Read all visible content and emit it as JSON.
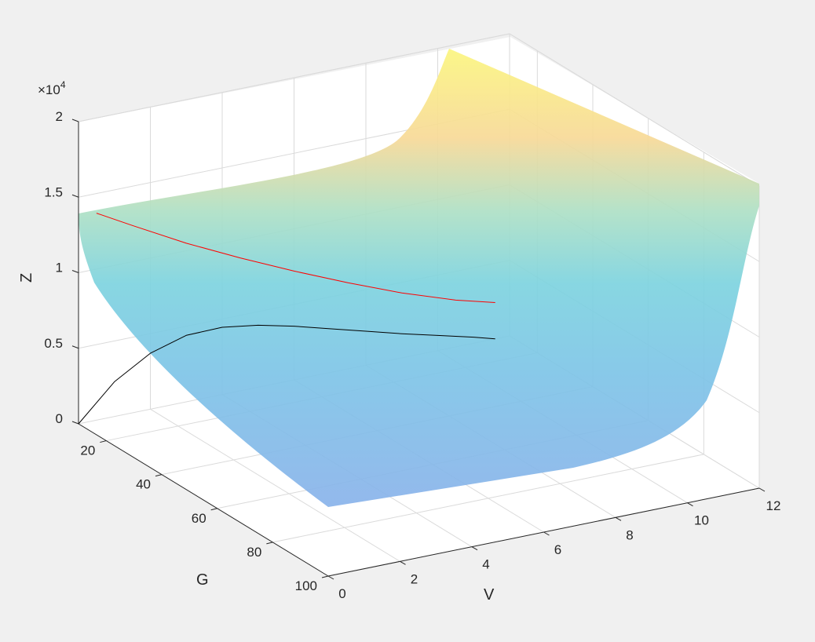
{
  "chart_data": {
    "type": "surface",
    "title": "",
    "xlabel": "V",
    "ylabel": "G",
    "zlabel": "Z",
    "z_exponent_label": "×10",
    "z_exponent_power": "4",
    "xlim": [
      0,
      12
    ],
    "ylim": [
      10,
      100
    ],
    "zlim": [
      0,
      20000
    ],
    "x_ticks": [
      {
        "value": 0,
        "label": "0"
      },
      {
        "value": 2,
        "label": "2"
      },
      {
        "value": 4,
        "label": "4"
      },
      {
        "value": 6,
        "label": "6"
      },
      {
        "value": 8,
        "label": "8"
      },
      {
        "value": 10,
        "label": "10"
      },
      {
        "value": 12,
        "label": "12"
      }
    ],
    "y_ticks": [
      {
        "value": 20,
        "label": "20"
      },
      {
        "value": 40,
        "label": "40"
      },
      {
        "value": 60,
        "label": "60"
      },
      {
        "value": 80,
        "label": "80"
      },
      {
        "value": 100,
        "label": "100"
      }
    ],
    "z_ticks": [
      {
        "value": 0,
        "label": "0"
      },
      {
        "value": 5000,
        "label": "0.5"
      },
      {
        "value": 10000,
        "label": "1"
      },
      {
        "value": 15000,
        "label": "1.5"
      },
      {
        "value": 20000,
        "label": "2"
      }
    ],
    "grid": true,
    "surface": {
      "v_range": [
        0,
        12
      ],
      "g_range": [
        10,
        100
      ],
      "colormap": "parula-light",
      "z_samples": [
        {
          "V": 0,
          "G": 10,
          "Z": 13700
        },
        {
          "V": 12,
          "G": 10,
          "Z": 13000
        },
        {
          "V": 0,
          "G": 100,
          "Z": 300
        },
        {
          "V": 6,
          "G": 60,
          "Z": 6000
        },
        {
          "V": 12,
          "G": 60,
          "Z": 20000
        },
        {
          "V": 12,
          "G": 100,
          "Z": 15000
        }
      ]
    },
    "series": [
      {
        "color": "#ff0000",
        "points": [
          [
            0.5,
            10,
            13700
          ],
          [
            1.5,
            10,
            12400
          ],
          [
            3,
            10,
            10500
          ],
          [
            4.5,
            10,
            8800
          ],
          [
            6,
            10,
            7200
          ],
          [
            7.5,
            10,
            5700
          ],
          [
            9,
            10,
            4300
          ],
          [
            10.5,
            10,
            3100
          ],
          [
            11.6,
            10,
            2400
          ]
        ]
      },
      {
        "color": "#000000",
        "points": [
          [
            0,
            10,
            0
          ],
          [
            1,
            10,
            2300
          ],
          [
            2,
            10,
            3700
          ],
          [
            3,
            10,
            4400
          ],
          [
            4,
            10,
            4450
          ],
          [
            5,
            10,
            4100
          ],
          [
            6,
            10,
            3550
          ],
          [
            7,
            10,
            2900
          ],
          [
            8,
            10,
            2250
          ],
          [
            9,
            10,
            1600
          ],
          [
            10,
            10,
            1000
          ],
          [
            11,
            10,
            400
          ],
          [
            11.6,
            10,
            0
          ]
        ]
      }
    ]
  }
}
